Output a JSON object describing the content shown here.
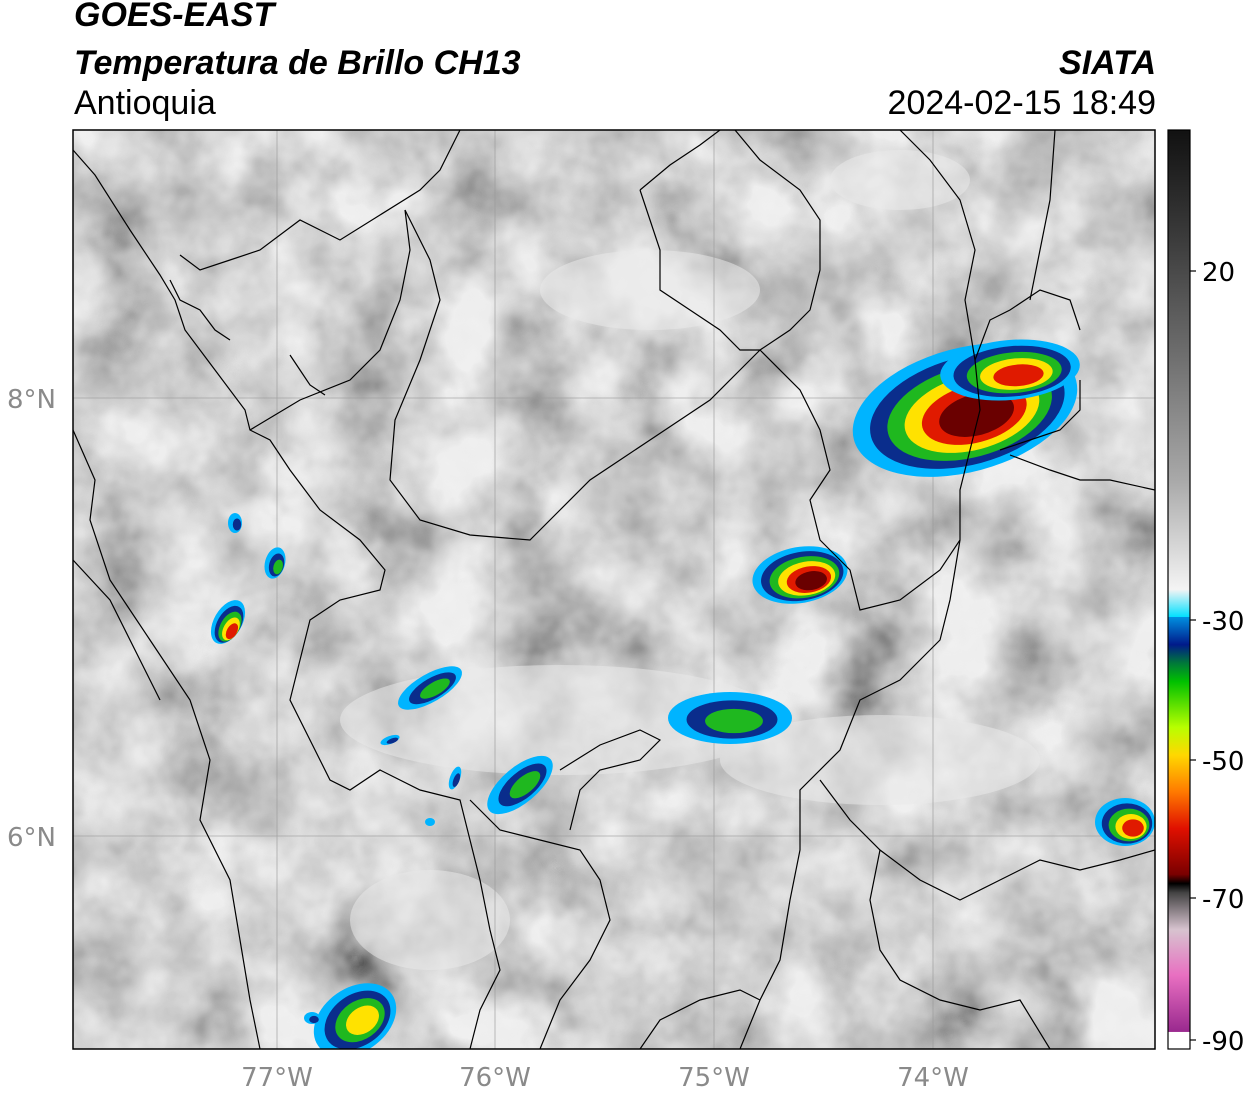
{
  "header": {
    "satellite": "GOES-EAST",
    "product": "Temperatura de Brillo CH13",
    "region": "Antioquia",
    "agency": "SIATA",
    "datetime": "2024-02-15 18:49"
  },
  "map": {
    "lat_labels": [
      "8°N",
      "6°N"
    ],
    "lon_labels": [
      "77°W",
      "76°W",
      "75°W",
      "74°W"
    ],
    "grid": true
  },
  "colorbar": {
    "tick_labels": [
      "20",
      "-30",
      "-50",
      "-70",
      "-90"
    ],
    "stops": [
      {
        "color": "#ffffff"
      },
      {
        "color": "#9b2a8f"
      },
      {
        "color": "#e86fc1"
      },
      {
        "color": "#d7c3cf"
      },
      {
        "color": "#444444"
      },
      {
        "color": "#000000"
      },
      {
        "color": "#7a0000"
      },
      {
        "color": "#e01000"
      },
      {
        "color": "#ff7a00"
      },
      {
        "color": "#ffd800"
      },
      {
        "color": "#b8ff00"
      },
      {
        "color": "#00c000"
      },
      {
        "color": "#00783a"
      },
      {
        "color": "#001a8a"
      },
      {
        "color": "#0090e0"
      },
      {
        "color": "#00e0ff"
      },
      {
        "color": "#f4f4f4"
      },
      {
        "color": "#a8a8a8"
      },
      {
        "color": "#707070"
      },
      {
        "color": "#3c3c3c"
      },
      {
        "color": "#111111"
      }
    ]
  },
  "storm_colors": {
    "edge": "#00b4ff",
    "blue": "#0a2d8c",
    "green": "#1fb81f",
    "yellow": "#ffe200",
    "red": "#e01a00",
    "core": "#6a0000"
  }
}
